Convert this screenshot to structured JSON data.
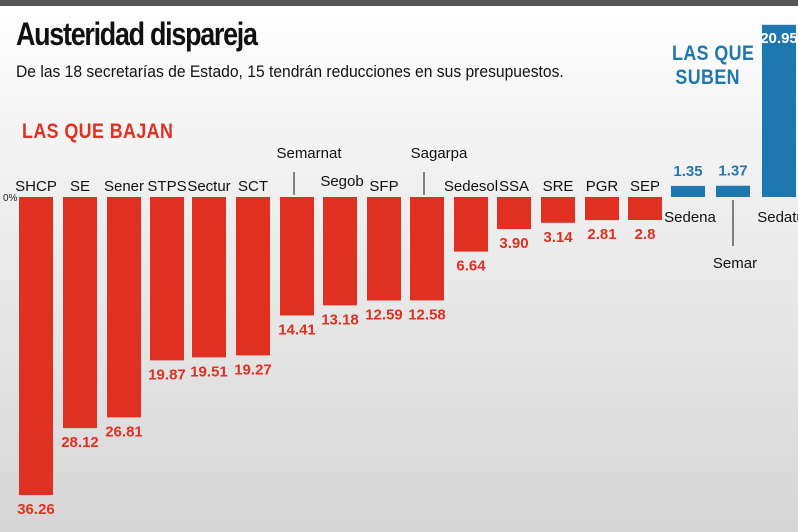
{
  "title": "Austeridad dispareja",
  "subtitle": "De las 18 secretarías de Estado, 15 tendrán reducciones en sus presupuestos.",
  "section_down_label": "LAS QUE BAJAN",
  "section_up_label": [
    "LAS QUE",
    "SUBEN"
  ],
  "colors": {
    "decrease": "#e03021",
    "increase": "#1f77b0"
  },
  "chart_data": {
    "type": "bar",
    "title": "Austeridad dispareja",
    "subtitle": "De las 18 secretarías de Estado, 15 tendrán reducciones en sus presupuestos.",
    "zero_label": "0%",
    "grid": false,
    "legend": "none",
    "categories": [
      "SHCP",
      "SE",
      "Sener",
      "STPS",
      "Sectur",
      "SCT",
      "Semarnat",
      "Segob",
      "SFP",
      "Sagarpa",
      "Sedesol",
      "SSA",
      "SRE",
      "PGR",
      "SEP",
      "Sedena",
      "Semar",
      "Sedatu"
    ],
    "values": [
      -36.26,
      -28.12,
      -26.81,
      -19.87,
      -19.51,
      -19.27,
      -14.41,
      -13.18,
      -12.59,
      -12.58,
      -6.64,
      -3.9,
      -3.14,
      -2.81,
      -2.8,
      1.35,
      1.37,
      20.95
    ],
    "value_labels": [
      "36.26",
      "28.12",
      "26.81",
      "19.87",
      "19.51",
      "19.27",
      "14.41",
      "13.18",
      "12.59",
      "12.58",
      "6.64",
      "3.90",
      "3.14",
      "2.81",
      "2.8",
      "1.35",
      "1.37",
      "20.95"
    ],
    "ylim": [
      -36.26,
      20.95
    ]
  }
}
